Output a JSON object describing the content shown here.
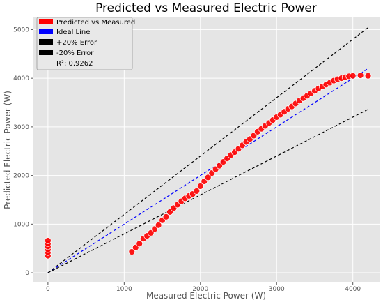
{
  "chart_data": {
    "type": "scatter",
    "title": "Predicted vs Measured Electric Power",
    "xlabel": "Measured Electric Power (W)",
    "ylabel": "Predicted Electric Power (W)",
    "xlim": [
      -200,
      4350
    ],
    "ylim": [
      -200,
      5250
    ],
    "xticks": [
      0,
      1000,
      2000,
      3000,
      4000
    ],
    "yticks": [
      0,
      1000,
      2000,
      3000,
      4000,
      5000
    ],
    "grid": true,
    "background": "#e5e5e5",
    "legend": {
      "placement": "top-left",
      "entries": [
        {
          "label": "Predicted vs Measured",
          "color": "#ff0000"
        },
        {
          "label": "Ideal Line",
          "color": "#0000ff"
        },
        {
          "label": "+20% Error",
          "color": "#000000"
        },
        {
          "label": "-20% Error",
          "color": "#000000"
        },
        {
          "label": "R²: 0.9262",
          "color": "none"
        }
      ]
    },
    "series": [
      {
        "name": "Predicted vs Measured",
        "color": "#ff0000",
        "points": [
          [
            0,
            350
          ],
          [
            0,
            420
          ],
          [
            0,
            480
          ],
          [
            0,
            540
          ],
          [
            0,
            600
          ],
          [
            0,
            660
          ],
          [
            1100,
            430
          ],
          [
            1150,
            520
          ],
          [
            1200,
            600
          ],
          [
            1250,
            700
          ],
          [
            1300,
            760
          ],
          [
            1350,
            820
          ],
          [
            1400,
            900
          ],
          [
            1450,
            980
          ],
          [
            1500,
            1080
          ],
          [
            1550,
            1150
          ],
          [
            1600,
            1250
          ],
          [
            1650,
            1330
          ],
          [
            1700,
            1400
          ],
          [
            1750,
            1470
          ],
          [
            1800,
            1530
          ],
          [
            1850,
            1580
          ],
          [
            1900,
            1620
          ],
          [
            1950,
            1680
          ],
          [
            2000,
            1780
          ],
          [
            2050,
            1880
          ],
          [
            2100,
            1960
          ],
          [
            2150,
            2050
          ],
          [
            2200,
            2130
          ],
          [
            2250,
            2200
          ],
          [
            2300,
            2280
          ],
          [
            2350,
            2350
          ],
          [
            2400,
            2420
          ],
          [
            2450,
            2480
          ],
          [
            2500,
            2550
          ],
          [
            2550,
            2620
          ],
          [
            2600,
            2690
          ],
          [
            2650,
            2750
          ],
          [
            2700,
            2820
          ],
          [
            2750,
            2900
          ],
          [
            2800,
            2960
          ],
          [
            2850,
            3020
          ],
          [
            2900,
            3080
          ],
          [
            2950,
            3140
          ],
          [
            3000,
            3200
          ],
          [
            3050,
            3250
          ],
          [
            3100,
            3310
          ],
          [
            3150,
            3370
          ],
          [
            3200,
            3420
          ],
          [
            3250,
            3480
          ],
          [
            3300,
            3540
          ],
          [
            3350,
            3590
          ],
          [
            3400,
            3640
          ],
          [
            3450,
            3690
          ],
          [
            3500,
            3740
          ],
          [
            3550,
            3790
          ],
          [
            3600,
            3830
          ],
          [
            3650,
            3870
          ],
          [
            3700,
            3910
          ],
          [
            3750,
            3950
          ],
          [
            3800,
            3980
          ],
          [
            3850,
            4000
          ],
          [
            3900,
            4020
          ],
          [
            3950,
            4040
          ],
          [
            4000,
            4050
          ],
          [
            4100,
            4060
          ],
          [
            4200,
            4050
          ]
        ]
      },
      {
        "name": "Ideal Line",
        "color": "#0000ff",
        "line": [
          [
            0,
            0
          ],
          [
            4200,
            4200
          ]
        ]
      },
      {
        "name": "+20% Error",
        "color": "#000000",
        "line": [
          [
            0,
            0
          ],
          [
            4200,
            5040
          ]
        ]
      },
      {
        "name": "-20% Error",
        "color": "#000000",
        "line": [
          [
            0,
            0
          ],
          [
            4200,
            3360
          ]
        ]
      }
    ],
    "r_squared": "0.9262"
  }
}
